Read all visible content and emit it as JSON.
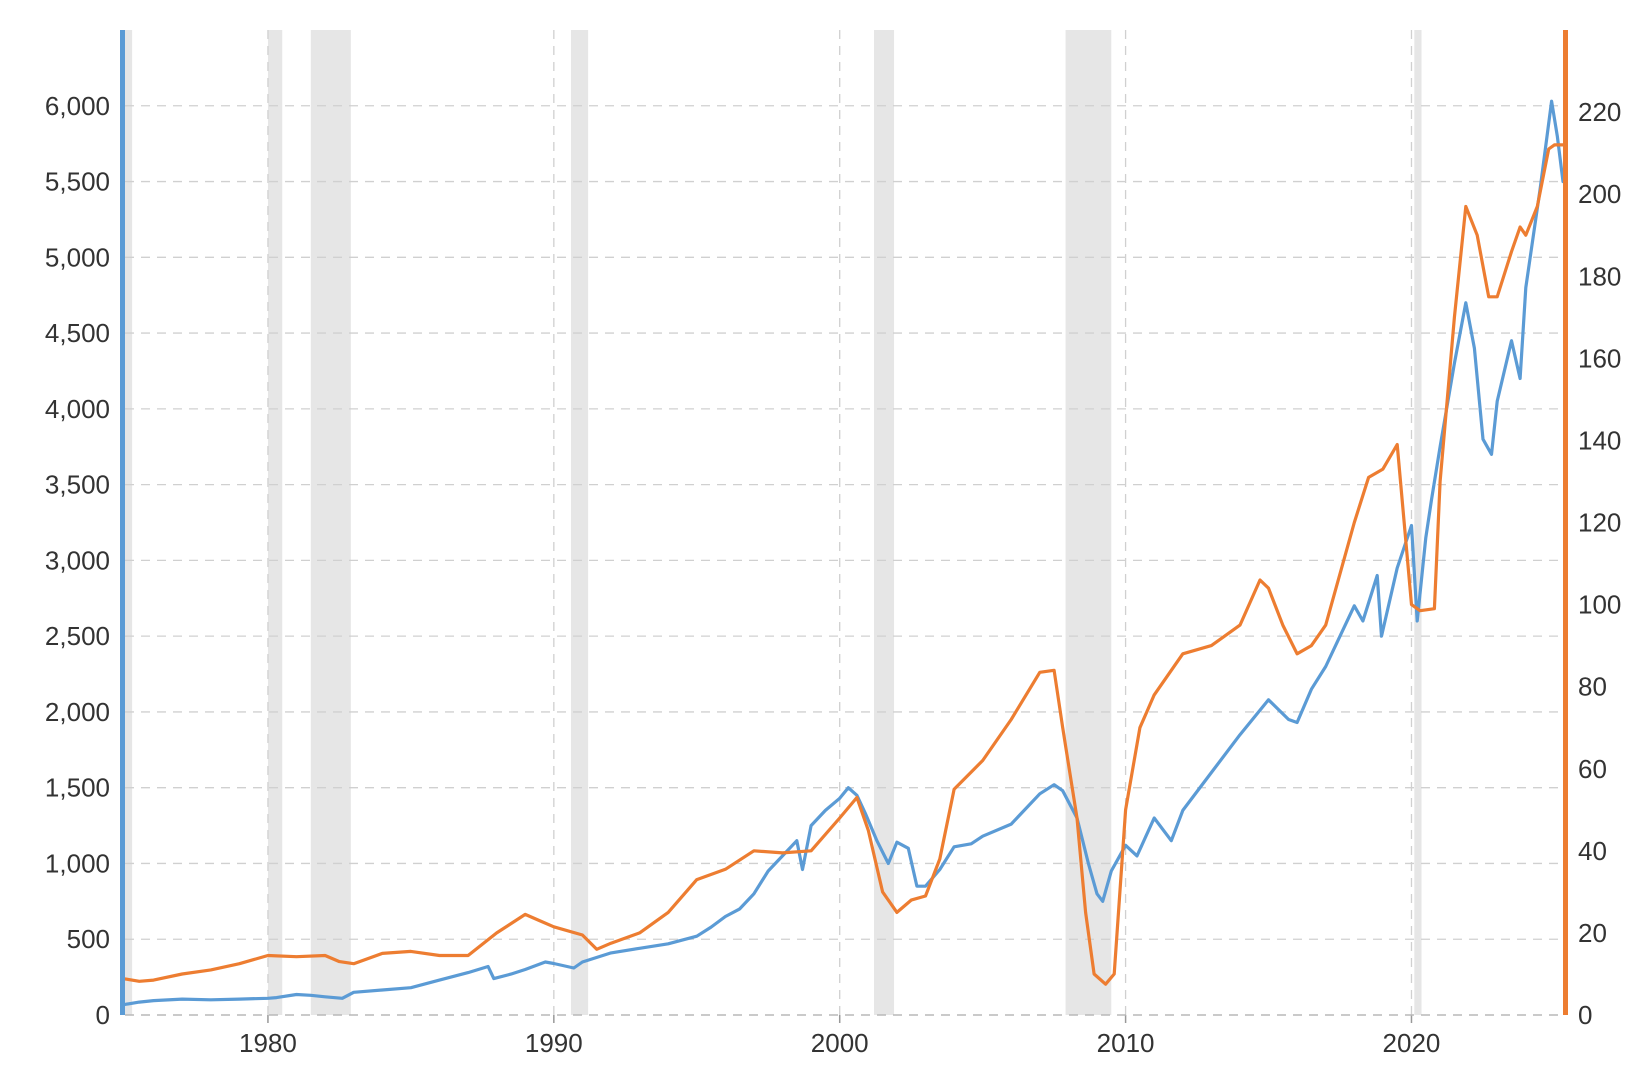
{
  "chart_data": {
    "type": "line",
    "title": "",
    "xlabel": "",
    "ylabel_left": "",
    "ylabel_right": "",
    "x_range": [
      1975.0,
      2025.3
    ],
    "x_ticks": [
      1980,
      1990,
      2000,
      2010,
      2020
    ],
    "x_tick_labels": [
      "1980",
      "1990",
      "2000",
      "2010",
      "2020"
    ],
    "y_left": {
      "range": [
        0,
        6500
      ],
      "ticks": [
        0,
        500,
        1000,
        1500,
        2000,
        2500,
        3000,
        3500,
        4000,
        4500,
        5000,
        5500,
        6000
      ],
      "tick_labels": [
        "0",
        "500",
        "1,000",
        "1,500",
        "2,000",
        "2,500",
        "3,000",
        "3,500",
        "4,000",
        "4,500",
        "5,000",
        "5,500",
        "6,000"
      ],
      "color": "#5b9bd5"
    },
    "y_right": {
      "range": [
        0,
        240
      ],
      "ticks": [
        0,
        20,
        40,
        60,
        80,
        100,
        120,
        140,
        160,
        180,
        200,
        220
      ],
      "tick_labels": [
        "0",
        "20",
        "40",
        "60",
        "80",
        "100",
        "120",
        "140",
        "160",
        "180",
        "200",
        "220"
      ],
      "color": "#ed7d31"
    },
    "grid": true,
    "legend": "none",
    "recessions": [
      [
        1975.0,
        1975.25
      ],
      [
        1980.0,
        1980.5
      ],
      [
        1981.5,
        1982.9
      ],
      [
        1990.6,
        1991.2
      ],
      [
        2001.2,
        2001.9
      ],
      [
        2007.9,
        2009.5
      ],
      [
        2020.1,
        2020.35
      ]
    ],
    "series": [
      {
        "axis": "left",
        "color": "#5b9bd5",
        "points": [
          [
            1975.0,
            70
          ],
          [
            1975.5,
            85
          ],
          [
            1976.0,
            95
          ],
          [
            1977.0,
            105
          ],
          [
            1978.0,
            100
          ],
          [
            1979.0,
            105
          ],
          [
            1980.0,
            110
          ],
          [
            1980.3,
            115
          ],
          [
            1981.0,
            135
          ],
          [
            1981.5,
            130
          ],
          [
            1982.0,
            120
          ],
          [
            1982.6,
            110
          ],
          [
            1983.0,
            150
          ],
          [
            1984.0,
            165
          ],
          [
            1985.0,
            180
          ],
          [
            1986.0,
            230
          ],
          [
            1987.0,
            280
          ],
          [
            1987.7,
            320
          ],
          [
            1987.9,
            240
          ],
          [
            1988.5,
            270
          ],
          [
            1989.0,
            300
          ],
          [
            1989.7,
            350
          ],
          [
            1990.0,
            340
          ],
          [
            1990.7,
            310
          ],
          [
            1991.0,
            350
          ],
          [
            1992.0,
            410
          ],
          [
            1993.0,
            440
          ],
          [
            1994.0,
            470
          ],
          [
            1995.0,
            520
          ],
          [
            1995.5,
            580
          ],
          [
            1996.0,
            650
          ],
          [
            1996.5,
            700
          ],
          [
            1997.0,
            800
          ],
          [
            1997.5,
            950
          ],
          [
            1998.0,
            1050
          ],
          [
            1998.5,
            1150
          ],
          [
            1998.7,
            960
          ],
          [
            1999.0,
            1250
          ],
          [
            1999.5,
            1350
          ],
          [
            2000.0,
            1430
          ],
          [
            2000.3,
            1500
          ],
          [
            2000.6,
            1450
          ],
          [
            2000.9,
            1330
          ],
          [
            2001.3,
            1150
          ],
          [
            2001.7,
            1000
          ],
          [
            2002.0,
            1140
          ],
          [
            2002.4,
            1100
          ],
          [
            2002.7,
            850
          ],
          [
            2003.0,
            850
          ],
          [
            2003.5,
            960
          ],
          [
            2004.0,
            1110
          ],
          [
            2004.6,
            1130
          ],
          [
            2005.0,
            1180
          ],
          [
            2006.0,
            1260
          ],
          [
            2007.0,
            1460
          ],
          [
            2007.5,
            1520
          ],
          [
            2007.8,
            1480
          ],
          [
            2008.3,
            1300
          ],
          [
            2008.7,
            1000
          ],
          [
            2009.0,
            800
          ],
          [
            2009.2,
            750
          ],
          [
            2009.5,
            950
          ],
          [
            2010.0,
            1120
          ],
          [
            2010.4,
            1050
          ],
          [
            2011.0,
            1300
          ],
          [
            2011.6,
            1150
          ],
          [
            2012.0,
            1350
          ],
          [
            2013.0,
            1600
          ],
          [
            2014.0,
            1850
          ],
          [
            2015.0,
            2080
          ],
          [
            2015.7,
            1950
          ],
          [
            2016.0,
            1930
          ],
          [
            2016.5,
            2150
          ],
          [
            2017.0,
            2300
          ],
          [
            2018.0,
            2700
          ],
          [
            2018.3,
            2600
          ],
          [
            2018.8,
            2900
          ],
          [
            2018.95,
            2500
          ],
          [
            2019.5,
            2950
          ],
          [
            2020.0,
            3230
          ],
          [
            2020.2,
            2600
          ],
          [
            2020.5,
            3150
          ],
          [
            2020.7,
            3400
          ],
          [
            2021.0,
            3750
          ],
          [
            2021.5,
            4300
          ],
          [
            2021.9,
            4700
          ],
          [
            2022.2,
            4400
          ],
          [
            2022.5,
            3800
          ],
          [
            2022.8,
            3700
          ],
          [
            2023.0,
            4050
          ],
          [
            2023.5,
            4450
          ],
          [
            2023.8,
            4200
          ],
          [
            2024.0,
            4800
          ],
          [
            2024.5,
            5450
          ],
          [
            2024.9,
            6030
          ],
          [
            2025.1,
            5800
          ],
          [
            2025.3,
            5500
          ]
        ]
      },
      {
        "axis": "right",
        "color": "#ed7d31",
        "points": [
          [
            1975.0,
            8.8
          ],
          [
            1975.5,
            8.2
          ],
          [
            1976.0,
            8.5
          ],
          [
            1977.0,
            10.0
          ],
          [
            1978.0,
            11.0
          ],
          [
            1979.0,
            12.5
          ],
          [
            1980.0,
            14.5
          ],
          [
            1981.0,
            14.2
          ],
          [
            1982.0,
            14.5
          ],
          [
            1982.5,
            13.0
          ],
          [
            1983.0,
            12.5
          ],
          [
            1984.0,
            15.0
          ],
          [
            1985.0,
            15.5
          ],
          [
            1986.0,
            14.5
          ],
          [
            1987.0,
            14.5
          ],
          [
            1988.0,
            20.0
          ],
          [
            1989.0,
            24.5
          ],
          [
            1989.5,
            23.0
          ],
          [
            1990.0,
            21.5
          ],
          [
            1991.0,
            19.5
          ],
          [
            1991.5,
            16.0
          ],
          [
            1992.0,
            17.5
          ],
          [
            1993.0,
            20.0
          ],
          [
            1994.0,
            25.0
          ],
          [
            1995.0,
            33.0
          ],
          [
            1996.0,
            35.5
          ],
          [
            1997.0,
            40.0
          ],
          [
            1998.0,
            39.5
          ],
          [
            1999.0,
            40.0
          ],
          [
            2000.0,
            48.0
          ],
          [
            2000.6,
            53.0
          ],
          [
            2001.0,
            45.0
          ],
          [
            2001.5,
            30.0
          ],
          [
            2002.0,
            25.0
          ],
          [
            2002.5,
            28.0
          ],
          [
            2003.0,
            29.0
          ],
          [
            2003.5,
            38.0
          ],
          [
            2004.0,
            55.0
          ],
          [
            2005.0,
            62.0
          ],
          [
            2006.0,
            72.0
          ],
          [
            2007.0,
            83.5
          ],
          [
            2007.5,
            84.0
          ],
          [
            2007.8,
            70.0
          ],
          [
            2008.3,
            48.0
          ],
          [
            2008.6,
            25.0
          ],
          [
            2008.9,
            10.0
          ],
          [
            2009.3,
            7.5
          ],
          [
            2009.6,
            10.0
          ],
          [
            2010.0,
            50.0
          ],
          [
            2010.5,
            70.0
          ],
          [
            2011.0,
            78.0
          ],
          [
            2012.0,
            88.0
          ],
          [
            2013.0,
            90.0
          ],
          [
            2014.0,
            95.0
          ],
          [
            2014.7,
            106.0
          ],
          [
            2015.0,
            104.0
          ],
          [
            2015.5,
            95.0
          ],
          [
            2016.0,
            88.0
          ],
          [
            2016.5,
            90.0
          ],
          [
            2017.0,
            95.0
          ],
          [
            2018.0,
            120.0
          ],
          [
            2018.5,
            131.0
          ],
          [
            2019.0,
            133.0
          ],
          [
            2019.5,
            139.0
          ],
          [
            2020.0,
            100.0
          ],
          [
            2020.3,
            98.5
          ],
          [
            2020.8,
            99.0
          ],
          [
            2021.0,
            130.0
          ],
          [
            2021.5,
            170.0
          ],
          [
            2021.9,
            197.0
          ],
          [
            2022.3,
            190.0
          ],
          [
            2022.7,
            175.0
          ],
          [
            2023.0,
            175.0
          ],
          [
            2023.5,
            186.0
          ],
          [
            2023.8,
            192.0
          ],
          [
            2024.0,
            190.0
          ],
          [
            2024.4,
            197.0
          ],
          [
            2024.8,
            211.0
          ],
          [
            2025.0,
            212.0
          ],
          [
            2025.3,
            212.0
          ]
        ]
      }
    ]
  }
}
